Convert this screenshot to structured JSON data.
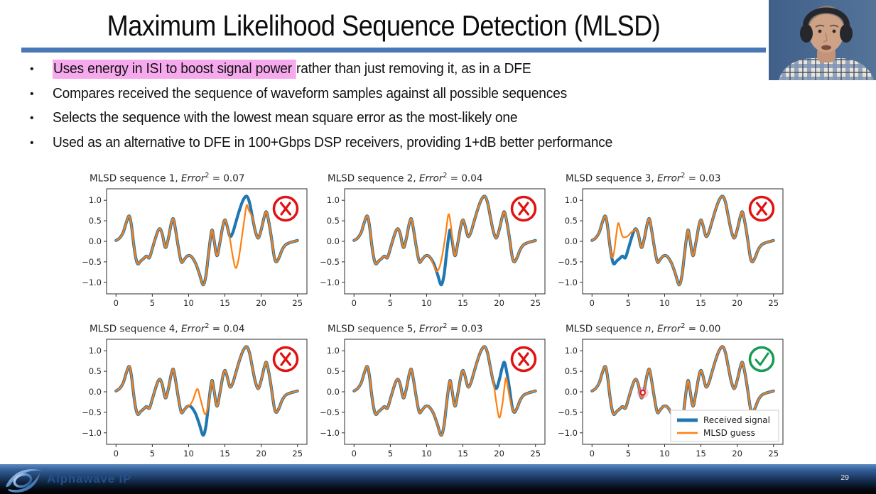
{
  "slide": {
    "title": "Maximum Likelihood Sequence Detection (MLSD)",
    "accent_color": "#4878b6",
    "highlight_color": "#f7a9ee",
    "bullets": [
      {
        "highlight": "Uses energy in ISI to boost signal power ",
        "rest": "rather than just removing it, as in a DFE"
      },
      {
        "highlight": "",
        "rest": "Compares received the sequence of waveform samples against all possible sequences"
      },
      {
        "highlight": "",
        "rest": "Selects the sequence with the lowest mean square error as the most-likely one"
      },
      {
        "highlight": "",
        "rest": "Used as an alternative to DFE in 100+Gbps DSP receivers, providing 1+dB better performance"
      }
    ]
  },
  "chart_data": {
    "type": "line",
    "x_ticks": [
      0,
      5,
      10,
      15,
      20,
      25
    ],
    "y_ticks": [
      "1.0",
      "0.5",
      "0.0",
      "−0.5",
      "−1.0"
    ],
    "xlim": [
      -1.3,
      26.3
    ],
    "ylim": [
      -1.28,
      1.28
    ],
    "series_colors": {
      "received": "#1f77b4",
      "guess": "#ff7f0e"
    },
    "colors": {
      "wrong": "#e01212",
      "correct": "#169b55"
    },
    "legend": {
      "position": "lower right of last subplot",
      "entries": [
        {
          "label": "Received signal",
          "color": "#1f77b4",
          "width": 5
        },
        {
          "label": "MLSD guess",
          "color": "#ff7f0e",
          "width": 2.5
        }
      ]
    },
    "received_signal": [
      [
        0,
        0.02
      ],
      [
        0.5,
        0.08
      ],
      [
        1.0,
        0.22
      ],
      [
        1.4,
        0.45
      ],
      [
        1.8,
        0.62
      ],
      [
        2.1,
        0.42
      ],
      [
        2.4,
        -0.02
      ],
      [
        2.7,
        -0.38
      ],
      [
        3.0,
        -0.55
      ],
      [
        3.4,
        -0.48
      ],
      [
        3.8,
        -0.42
      ],
      [
        4.2,
        -0.36
      ],
      [
        4.6,
        -0.4
      ],
      [
        5.0,
        -0.18
      ],
      [
        5.4,
        0.06
      ],
      [
        5.8,
        0.26
      ],
      [
        6.1,
        0.3
      ],
      [
        6.4,
        0.16
      ],
      [
        6.8,
        -0.15
      ],
      [
        7.2,
        0.06
      ],
      [
        7.6,
        0.42
      ],
      [
        7.9,
        0.55
      ],
      [
        8.2,
        0.28
      ],
      [
        8.6,
        -0.16
      ],
      [
        9.0,
        -0.5
      ],
      [
        9.4,
        -0.44
      ],
      [
        9.8,
        -0.36
      ],
      [
        10.2,
        -0.35
      ],
      [
        10.6,
        -0.42
      ],
      [
        11.0,
        -0.55
      ],
      [
        11.5,
        -0.8
      ],
      [
        12.0,
        -1.06
      ],
      [
        12.4,
        -0.82
      ],
      [
        12.8,
        -0.22
      ],
      [
        13.2,
        0.27
      ],
      [
        13.5,
        0.04
      ],
      [
        13.9,
        -0.35
      ],
      [
        14.3,
        -0.04
      ],
      [
        14.7,
        0.36
      ],
      [
        15.0,
        0.52
      ],
      [
        15.3,
        0.38
      ],
      [
        15.7,
        0.12
      ],
      [
        16.1,
        0.22
      ],
      [
        16.5,
        0.46
      ],
      [
        17.0,
        0.76
      ],
      [
        17.5,
        1.0
      ],
      [
        18.0,
        1.1
      ],
      [
        18.4,
        0.94
      ],
      [
        18.8,
        0.58
      ],
      [
        19.2,
        0.24
      ],
      [
        19.6,
        0.08
      ],
      [
        20.0,
        0.28
      ],
      [
        20.4,
        0.58
      ],
      [
        20.7,
        0.72
      ],
      [
        21.0,
        0.52
      ],
      [
        21.4,
        0.1
      ],
      [
        21.8,
        -0.38
      ],
      [
        22.1,
        -0.5
      ],
      [
        22.5,
        -0.38
      ],
      [
        22.9,
        -0.2
      ],
      [
        23.4,
        -0.08
      ],
      [
        24.0,
        -0.03
      ],
      [
        24.6,
        0.0
      ],
      [
        25.0,
        0.02
      ]
    ],
    "subplots": [
      {
        "title": "MLSD sequence 1, Error² = 0.07",
        "title_parts": [
          {
            "t": "MLSD sequence 1, "
          },
          {
            "t": "Error",
            "i": true
          },
          {
            "t": "2",
            "sup": true
          },
          {
            "t": " = 0.07"
          }
        ],
        "error_sq": 0.07,
        "verdict": "wrong",
        "deviation": {
          "x_start": 15.3,
          "x_end": 18.8,
          "points": [
            [
              15.3,
              0.38
            ],
            [
              15.7,
              0.05
            ],
            [
              16.1,
              -0.38
            ],
            [
              16.5,
              -0.65
            ],
            [
              16.9,
              -0.42
            ],
            [
              17.3,
              0.05
            ],
            [
              17.7,
              0.55
            ],
            [
              18.0,
              0.88
            ],
            [
              18.3,
              0.75
            ],
            [
              18.8,
              0.58
            ]
          ]
        }
      },
      {
        "title": "MLSD sequence 2, Error² = 0.04",
        "title_parts": [
          {
            "t": "MLSD sequence 2, "
          },
          {
            "t": "Error",
            "i": true
          },
          {
            "t": "2",
            "sup": true
          },
          {
            "t": " = 0.04"
          }
        ],
        "error_sq": 0.04,
        "verdict": "wrong",
        "deviation": {
          "x_start": 10.6,
          "x_end": 13.9,
          "points": [
            [
              10.6,
              -0.42
            ],
            [
              11.0,
              -0.6
            ],
            [
              11.4,
              -0.73
            ],
            [
              11.8,
              -0.62
            ],
            [
              12.2,
              -0.3
            ],
            [
              12.6,
              0.15
            ],
            [
              13.0,
              0.65
            ],
            [
              13.3,
              0.45
            ],
            [
              13.6,
              0.0
            ],
            [
              13.9,
              -0.35
            ]
          ]
        }
      },
      {
        "title": "MLSD sequence 3, Error² = 0.03",
        "title_parts": [
          {
            "t": "MLSD sequence 3, "
          },
          {
            "t": "Error",
            "i": true
          },
          {
            "t": "2",
            "sup": true
          },
          {
            "t": " = 0.03"
          }
        ],
        "error_sq": 0.03,
        "verdict": "wrong",
        "deviation": {
          "x_start": 2.7,
          "x_end": 5.8,
          "points": [
            [
              2.7,
              -0.38
            ],
            [
              3.0,
              -0.3
            ],
            [
              3.3,
              0.1
            ],
            [
              3.6,
              0.44
            ],
            [
              3.9,
              0.3
            ],
            [
              4.2,
              0.12
            ],
            [
              4.6,
              0.1
            ],
            [
              5.0,
              0.14
            ],
            [
              5.4,
              0.22
            ],
            [
              5.8,
              0.26
            ]
          ]
        }
      },
      {
        "title": "MLSD sequence 4, Error² = 0.04",
        "title_parts": [
          {
            "t": "MLSD sequence 4, "
          },
          {
            "t": "Error",
            "i": true
          },
          {
            "t": "2",
            "sup": true
          },
          {
            "t": " = 0.04"
          }
        ],
        "error_sq": 0.04,
        "verdict": "wrong",
        "deviation": {
          "x_start": 9.8,
          "x_end": 13.2,
          "points": [
            [
              9.8,
              -0.36
            ],
            [
              10.2,
              -0.32
            ],
            [
              10.6,
              -0.2
            ],
            [
              11.2,
              0.07
            ],
            [
              11.6,
              -0.15
            ],
            [
              12.0,
              -0.42
            ],
            [
              12.3,
              -0.55
            ],
            [
              12.6,
              -0.42
            ],
            [
              12.9,
              -0.1
            ],
            [
              13.2,
              0.27
            ]
          ]
        }
      },
      {
        "title": "MLSD sequence 5, Error² = 0.03",
        "title_parts": [
          {
            "t": "MLSD sequence 5, "
          },
          {
            "t": "Error",
            "i": true
          },
          {
            "t": "2",
            "sup": true
          },
          {
            "t": " = 0.03"
          }
        ],
        "error_sq": 0.03,
        "verdict": "wrong",
        "deviation": {
          "x_start": 19.2,
          "x_end": 22.1,
          "points": [
            [
              19.2,
              0.24
            ],
            [
              19.6,
              -0.25
            ],
            [
              20.0,
              -0.63
            ],
            [
              20.4,
              -0.35
            ],
            [
              20.9,
              0.32
            ],
            [
              21.2,
              0.1
            ],
            [
              21.5,
              -0.2
            ],
            [
              21.8,
              -0.4
            ],
            [
              22.1,
              -0.5
            ]
          ]
        }
      },
      {
        "title": "MLSD sequence n, Error² = 0.00",
        "title_parts": [
          {
            "t": "MLSD sequence "
          },
          {
            "t": "n",
            "i": true
          },
          {
            "t": ", "
          },
          {
            "t": "Error",
            "i": true
          },
          {
            "t": "2",
            "sup": true
          },
          {
            "t": " = 0.00"
          }
        ],
        "error_sq": 0.0,
        "verdict": "correct",
        "deviation": null,
        "show_legend": true,
        "laser_dot": {
          "x": 7.0,
          "y": -0.02
        }
      }
    ]
  },
  "footer": {
    "brand": "Alphawave IP",
    "page_number": "29"
  }
}
